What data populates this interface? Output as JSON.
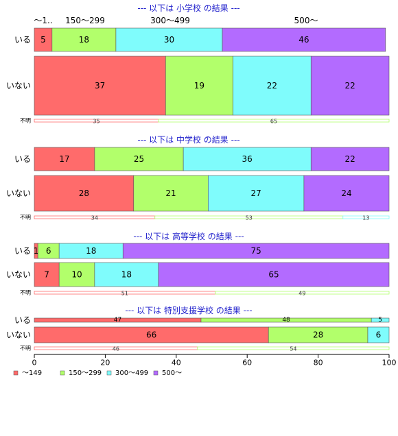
{
  "chart_data": {
    "type": "bar",
    "orientation": "horizontal",
    "stacked": true,
    "percent_scale": true,
    "xlim": [
      0,
      100
    ],
    "x_ticks": [
      0,
      20,
      40,
      60,
      80,
      100
    ],
    "legend_position": "bottom-left",
    "series": [
      {
        "name": "～149",
        "color": "#ff6b6b"
      },
      {
        "name": "150～299",
        "color": "#b2ff6b"
      },
      {
        "name": "300～499",
        "color": "#7ffcfc"
      },
      {
        "name": "500～",
        "color": "#b36bff"
      }
    ],
    "unknown_label": "不明",
    "top_category_headers": [
      "～1..",
      "150～299",
      "300～499",
      "500～"
    ],
    "groups": [
      {
        "title": "--- 以下は 小学校 の結果 ---",
        "rows": [
          {
            "label": "いる",
            "values": [
              5,
              18,
              30,
              46
            ],
            "labels": [
              "5",
              "18",
              "30",
              "46"
            ]
          },
          {
            "label": "いない",
            "values": [
              37,
              19,
              22,
              22
            ],
            "labels": [
              "37",
              "19",
              "22",
              "22"
            ]
          }
        ],
        "unknown": [
          35,
          65
        ]
      },
      {
        "title": "--- 以下は 中学校 の結果 ---",
        "rows": [
          {
            "label": "いる",
            "values": [
              17,
              25,
              36,
              22
            ],
            "labels": [
              "17",
              "25",
              "36",
              "22"
            ]
          },
          {
            "label": "いない",
            "values": [
              28,
              21,
              27,
              24
            ],
            "labels": [
              "28",
              "21",
              "27",
              "24"
            ]
          }
        ],
        "unknown": [
          34,
          53,
          13
        ]
      },
      {
        "title": "--- 以下は 高等学校 の結果 ---",
        "rows": [
          {
            "label": "いる",
            "values": [
              1,
              6,
              18,
              75
            ],
            "labels": [
              "1",
              "6",
              "18",
              "75"
            ]
          },
          {
            "label": "いない",
            "values": [
              7,
              10,
              18,
              65
            ],
            "labels": [
              "7",
              "10",
              "18",
              "65"
            ]
          }
        ],
        "unknown": [
          51,
          49
        ]
      },
      {
        "title": "--- 以下は 特別支援学校 の結果 ---",
        "rows": [
          {
            "label": "いる",
            "values": [
              47,
              48,
              5,
              0
            ],
            "labels": [
              "47",
              "48",
              "5",
              ""
            ]
          },
          {
            "label": "いない",
            "values": [
              66,
              28,
              6,
              0
            ],
            "labels": [
              "66",
              "28",
              "6",
              ""
            ]
          }
        ],
        "unknown": [
          46,
          54
        ]
      }
    ]
  }
}
